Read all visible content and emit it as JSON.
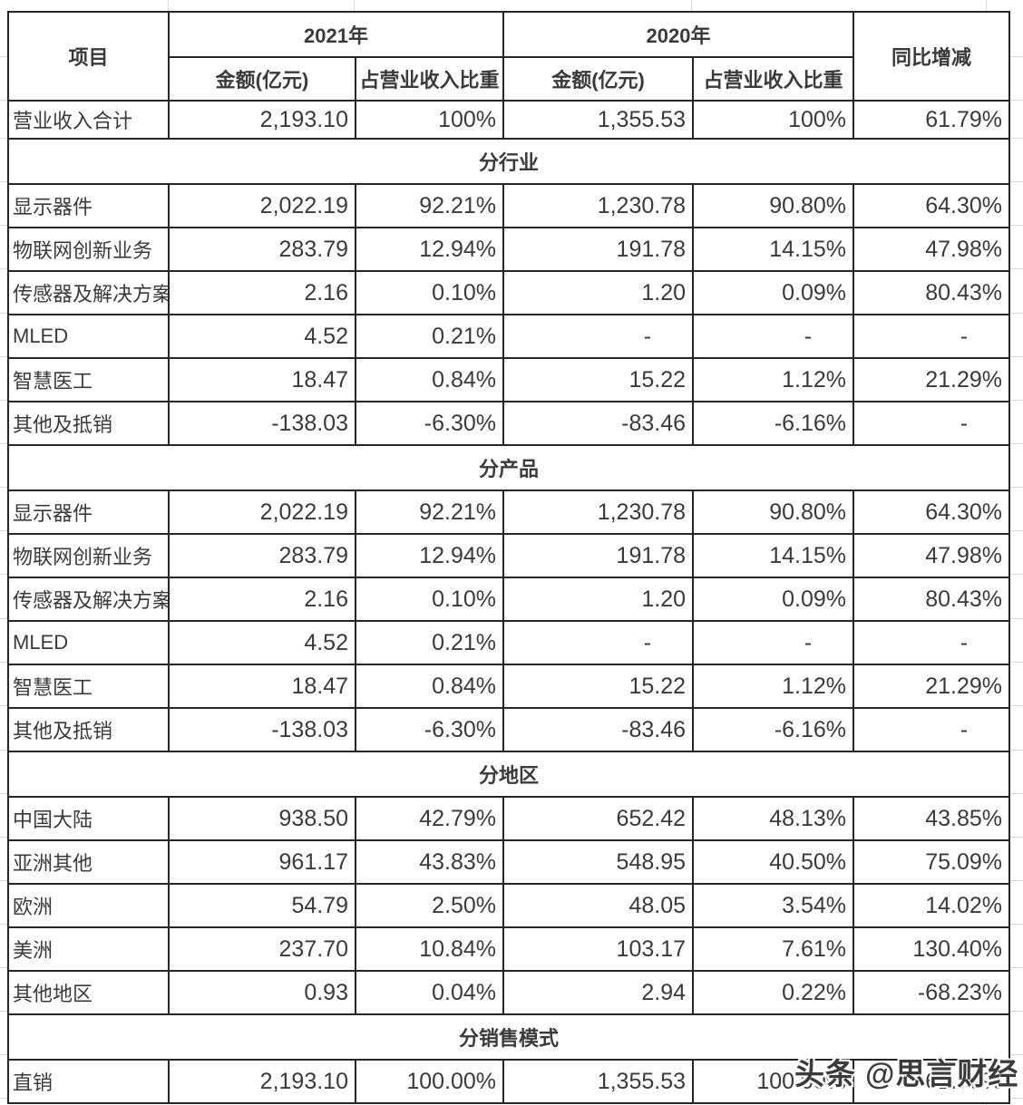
{
  "chart_data": {
    "type": "table",
    "header": {
      "item": "项目",
      "y2021": "2021年",
      "y2020": "2020年",
      "amount_2021": "金额(亿元)",
      "ratio_2021": "占营业收入比重",
      "amount_2020": "金额(亿元)",
      "ratio_2020": "占营业收入比重",
      "yoy": "同比增减"
    },
    "rows": [
      {
        "kind": "total",
        "label": "营业收入合计",
        "values": [
          "2,193.10",
          "100%",
          "1,355.53",
          "100%",
          "61.79%"
        ]
      },
      {
        "kind": "section",
        "label": "分行业"
      },
      {
        "kind": "data",
        "label": "显示器件",
        "values": [
          "2,022.19",
          "92.21%",
          "1,230.78",
          "90.80%",
          "64.30%"
        ]
      },
      {
        "kind": "data",
        "label": "物联网创新业务",
        "values": [
          "283.79",
          "12.94%",
          "191.78",
          "14.15%",
          "47.98%"
        ]
      },
      {
        "kind": "data",
        "label": "传感器及解决方案",
        "values": [
          "2.16",
          "0.10%",
          "1.20",
          "0.09%",
          "80.43%"
        ]
      },
      {
        "kind": "data",
        "label": "MLED",
        "values": [
          "4.52",
          "0.21%",
          "-",
          "-",
          "-"
        ]
      },
      {
        "kind": "data",
        "label": "智慧医工",
        "values": [
          "18.47",
          "0.84%",
          "15.22",
          "1.12%",
          "21.29%"
        ]
      },
      {
        "kind": "data",
        "label": "其他及抵销",
        "values": [
          "-138.03",
          "-6.30%",
          "-83.46",
          "-6.16%",
          "-"
        ]
      },
      {
        "kind": "section",
        "label": "分产品"
      },
      {
        "kind": "data",
        "label": "显示器件",
        "values": [
          "2,022.19",
          "92.21%",
          "1,230.78",
          "90.80%",
          "64.30%"
        ]
      },
      {
        "kind": "data",
        "label": "物联网创新业务",
        "values": [
          "283.79",
          "12.94%",
          "191.78",
          "14.15%",
          "47.98%"
        ]
      },
      {
        "kind": "data",
        "label": "传感器及解决方案",
        "values": [
          "2.16",
          "0.10%",
          "1.20",
          "0.09%",
          "80.43%"
        ]
      },
      {
        "kind": "data",
        "label": "MLED",
        "values": [
          "4.52",
          "0.21%",
          "-",
          "-",
          "-"
        ]
      },
      {
        "kind": "data",
        "label": "智慧医工",
        "values": [
          "18.47",
          "0.84%",
          "15.22",
          "1.12%",
          "21.29%"
        ]
      },
      {
        "kind": "data",
        "label": "其他及抵销",
        "values": [
          "-138.03",
          "-6.30%",
          "-83.46",
          "-6.16%",
          "-"
        ]
      },
      {
        "kind": "section",
        "label": "分地区"
      },
      {
        "kind": "data",
        "label": "中国大陆",
        "values": [
          "938.50",
          "42.79%",
          "652.42",
          "48.13%",
          "43.85%"
        ]
      },
      {
        "kind": "data",
        "label": "亚洲其他",
        "values": [
          "961.17",
          "43.83%",
          "548.95",
          "40.50%",
          "75.09%"
        ]
      },
      {
        "kind": "data",
        "label": "欧洲",
        "values": [
          "54.79",
          "2.50%",
          "48.05",
          "3.54%",
          "14.02%"
        ]
      },
      {
        "kind": "data",
        "label": "美洲",
        "values": [
          "237.70",
          "10.84%",
          "103.17",
          "7.61%",
          "130.40%"
        ]
      },
      {
        "kind": "data",
        "label": "其他地区",
        "values": [
          "0.93",
          "0.04%",
          "2.94",
          "0.22%",
          "-68.23%"
        ]
      },
      {
        "kind": "section",
        "label": "分销售模式"
      },
      {
        "kind": "data",
        "label": "直销",
        "values": [
          "2,193.10",
          "100.00%",
          "1,355.53",
          "100.00%",
          "61.79%"
        ]
      }
    ]
  },
  "watermark": {
    "text": "头条 @思言财经"
  },
  "colors": {
    "border": "#262626",
    "text": "#3a3a3a",
    "grid_faint": "#d9d9d9"
  }
}
